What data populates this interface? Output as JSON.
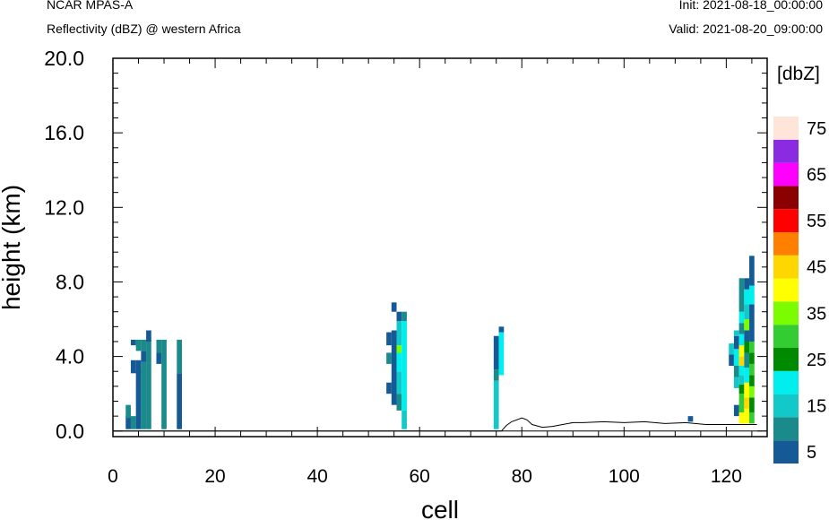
{
  "header": {
    "left_line1": "NCAR MPAS-A",
    "left_line2": "Reflectivity (dBZ) @ western Africa",
    "right_line1": "Init: 2021-08-18_00:00:00",
    "right_line2": "Valid: 2021-08-20_09:00:00"
  },
  "chart_data": {
    "type": "heatmap",
    "title": "Reflectivity (dBZ) @ western Africa",
    "xlabel": "cell",
    "ylabel": "height (km)",
    "xlim": [
      0,
      128
    ],
    "ylim": [
      -0.3,
      20.0
    ],
    "x_ticks": [
      0,
      20,
      40,
      60,
      80,
      100,
      120
    ],
    "y_ticks": [
      0.0,
      4.0,
      8.0,
      12.0,
      16.0,
      20.0
    ],
    "x_tick_labels": [
      "0",
      "20",
      "40",
      "60",
      "80",
      "100",
      "120"
    ],
    "y_tick_labels": [
      "0.0",
      "4.0",
      "8.0",
      "12.0",
      "16.0",
      "20.0"
    ],
    "grid": false,
    "colorbar": {
      "label": "[dbZ]",
      "levels": [
        5,
        10,
        15,
        20,
        25,
        30,
        35,
        40,
        45,
        50,
        55,
        60,
        65,
        70,
        75
      ],
      "tick_labels": [
        "5",
        "15",
        "25",
        "35",
        "45",
        "55",
        "65",
        "75"
      ],
      "colors": [
        "#155a96",
        "#1a8a8a",
        "#13c8c8",
        "#00eeee",
        "#008a00",
        "#33cc33",
        "#7cfc00",
        "#ffff00",
        "#ffd700",
        "#ff8000",
        "#ff0000",
        "#8b0000",
        "#ff00ff",
        "#8a2be2",
        "#ffe4da"
      ]
    },
    "columns": [
      {
        "x": 3,
        "cells": [
          [
            0.1,
            0.7,
            5
          ],
          [
            0.7,
            0.7,
            10
          ]
        ]
      },
      {
        "x": 4,
        "cells": [
          [
            0.1,
            0.7,
            10
          ],
          [
            3.1,
            0.7,
            5
          ],
          [
            4.6,
            0.3,
            5
          ]
        ]
      },
      {
        "x": 5,
        "cells": [
          [
            0.1,
            3.1,
            5
          ],
          [
            3.1,
            0.7,
            5
          ],
          [
            4.3,
            0.6,
            10
          ]
        ]
      },
      {
        "x": 6,
        "cells": [
          [
            0.1,
            3.6,
            10
          ],
          [
            3.7,
            0.6,
            5
          ],
          [
            4.3,
            0.6,
            10
          ]
        ]
      },
      {
        "x": 7,
        "cells": [
          [
            0.1,
            4.8,
            10
          ],
          [
            4.8,
            0.6,
            5
          ]
        ]
      },
      {
        "x": 9,
        "cells": [
          [
            3.6,
            0.6,
            5
          ],
          [
            4.2,
            0.7,
            10
          ]
        ]
      },
      {
        "x": 10,
        "cells": [
          [
            0.1,
            4.8,
            10
          ]
        ]
      },
      {
        "x": 13,
        "cells": [
          [
            0.1,
            3.0,
            5
          ],
          [
            3.1,
            1.8,
            10
          ]
        ]
      },
      {
        "x": 54,
        "cells": [
          [
            2.0,
            0.6,
            5
          ],
          [
            3.6,
            0.6,
            10
          ],
          [
            4.6,
            0.7,
            5
          ]
        ]
      },
      {
        "x": 55,
        "cells": [
          [
            1.4,
            4.0,
            5
          ],
          [
            6.4,
            0.5,
            5
          ]
        ]
      },
      {
        "x": 56,
        "cells": [
          [
            1.1,
            0.9,
            10
          ],
          [
            2.0,
            1.2,
            15
          ],
          [
            3.2,
            1.0,
            20
          ],
          [
            4.2,
            0.4,
            35
          ],
          [
            4.6,
            1.3,
            15
          ],
          [
            5.9,
            0.5,
            5
          ]
        ]
      },
      {
        "x": 57,
        "cells": [
          [
            0.1,
            1.0,
            15
          ],
          [
            1.1,
            4.8,
            20
          ],
          [
            5.9,
            0.5,
            10
          ]
        ]
      },
      {
        "x": 75,
        "cells": [
          [
            0.1,
            2.6,
            15
          ],
          [
            2.7,
            0.6,
            10
          ],
          [
            3.3,
            1.8,
            5
          ]
        ]
      },
      {
        "x": 76,
        "cells": [
          [
            3.0,
            2.3,
            20
          ],
          [
            5.3,
            0.3,
            5
          ]
        ]
      },
      {
        "x": 113,
        "cells": [
          [
            0.5,
            0.3,
            5
          ]
        ]
      },
      {
        "x": 121,
        "cells": [
          [
            4.1,
            0.6,
            15
          ],
          [
            3.5,
            0.6,
            5
          ]
        ]
      },
      {
        "x": 122,
        "cells": [
          [
            0.8,
            0.6,
            5
          ],
          [
            2.3,
            0.6,
            15
          ],
          [
            2.9,
            0.6,
            10
          ],
          [
            3.5,
            0.9,
            20
          ],
          [
            4.4,
            0.7,
            5
          ],
          [
            5.1,
            0.3,
            15
          ]
        ]
      },
      {
        "x": 123,
        "cells": [
          [
            0.4,
            0.6,
            40
          ],
          [
            1.0,
            1.0,
            30
          ],
          [
            2.0,
            0.5,
            25
          ],
          [
            2.5,
            0.5,
            15
          ],
          [
            3.0,
            0.5,
            20
          ],
          [
            3.5,
            0.5,
            45
          ],
          [
            4.0,
            0.6,
            40
          ],
          [
            4.6,
            0.6,
            20
          ],
          [
            5.2,
            0.6,
            10
          ],
          [
            5.8,
            0.6,
            20
          ],
          [
            6.4,
            1.8,
            10
          ]
        ]
      },
      {
        "x": 124,
        "cells": [
          [
            0.4,
            0.8,
            40
          ],
          [
            1.2,
            0.6,
            45
          ],
          [
            1.8,
            0.8,
            40
          ],
          [
            2.6,
            0.8,
            20
          ],
          [
            3.4,
            0.8,
            10
          ],
          [
            4.2,
            0.6,
            25
          ],
          [
            4.8,
            0.6,
            5
          ],
          [
            5.4,
            0.6,
            35
          ],
          [
            6.0,
            0.8,
            15
          ],
          [
            6.8,
            0.8,
            20
          ],
          [
            7.6,
            0.6,
            5
          ]
        ]
      },
      {
        "x": 125,
        "cells": [
          [
            0.4,
            0.6,
            30
          ],
          [
            1.0,
            0.8,
            25
          ],
          [
            1.8,
            0.6,
            35
          ],
          [
            2.4,
            0.6,
            25
          ],
          [
            3.0,
            0.6,
            30
          ],
          [
            3.6,
            0.6,
            25
          ],
          [
            4.2,
            0.6,
            30
          ],
          [
            4.8,
            0.6,
            5
          ],
          [
            5.4,
            1.4,
            5
          ],
          [
            6.8,
            1.0,
            20
          ],
          [
            7.8,
            1.6,
            5
          ]
        ]
      }
    ],
    "terrain": [
      [
        0,
        0.0
      ],
      [
        76,
        0.0
      ],
      [
        77,
        0.3
      ],
      [
        78,
        0.5
      ],
      [
        80,
        0.7
      ],
      [
        81,
        0.6
      ],
      [
        82,
        0.35
      ],
      [
        84,
        0.2
      ],
      [
        86,
        0.25
      ],
      [
        88,
        0.35
      ],
      [
        90,
        0.45
      ],
      [
        92,
        0.45
      ],
      [
        96,
        0.5
      ],
      [
        100,
        0.45
      ],
      [
        104,
        0.5
      ],
      [
        108,
        0.4
      ],
      [
        112,
        0.45
      ],
      [
        116,
        0.35
      ],
      [
        120,
        0.35
      ],
      [
        124,
        0.35
      ],
      [
        126,
        0.35
      ]
    ]
  }
}
